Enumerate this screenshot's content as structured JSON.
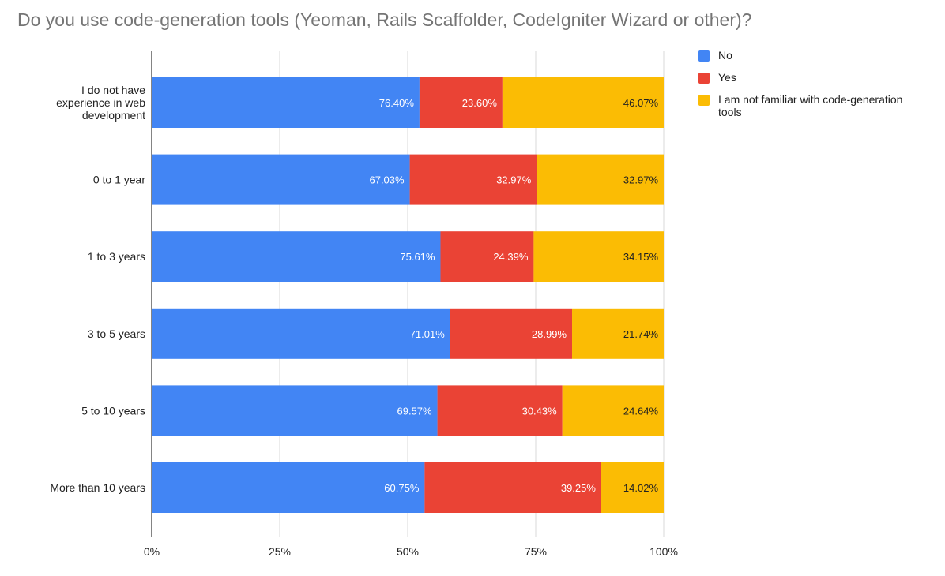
{
  "chart_data": {
    "type": "bar",
    "orientation": "horizontal",
    "stacked": "percent",
    "title": "Do you use code-generation tools (Yeoman, Rails Scaffolder, CodeIgniter Wizard or other)?",
    "xlabel": "",
    "ylabel": "",
    "categories": [
      "I do not have experience in web development",
      "0 to 1 year",
      "1 to 3 years",
      "3 to 5 years",
      "5 to 10 years",
      "More than 10 years"
    ],
    "category_lines": [
      [
        "I do not have",
        "experience in web",
        "development"
      ],
      [
        "0 to 1 year"
      ],
      [
        "1 to 3 years"
      ],
      [
        "3 to 5 years"
      ],
      [
        "5 to 10 years"
      ],
      [
        "More than 10 years"
      ]
    ],
    "series": [
      {
        "name": "No",
        "color": "#4285f4",
        "labels": [
          "76.40%",
          "67.03%",
          "75.61%",
          "71.01%",
          "69.57%",
          "60.75%"
        ]
      },
      {
        "name": "Yes",
        "color": "#ea4335",
        "labels": [
          "23.60%",
          "32.97%",
          "24.39%",
          "28.99%",
          "30.43%",
          "39.25%"
        ]
      },
      {
        "name": "I am not familiar with code-generation tools",
        "color": "#fbbc04",
        "labels": [
          "46.07%",
          "32.97%",
          "34.15%",
          "21.74%",
          "24.64%",
          "14.02%"
        ]
      }
    ],
    "shares": [
      [
        52.3,
        16.2,
        31.5
      ],
      [
        50.4,
        24.8,
        24.8
      ],
      [
        56.4,
        18.2,
        25.4
      ],
      [
        58.3,
        23.8,
        17.9
      ],
      [
        55.8,
        24.4,
        19.8
      ],
      [
        53.3,
        34.5,
        12.2
      ]
    ],
    "xlim": [
      0,
      100
    ],
    "xticks": [
      "0%",
      "25%",
      "50%",
      "75%",
      "100%"
    ],
    "grid": true,
    "legend_position": "right"
  }
}
